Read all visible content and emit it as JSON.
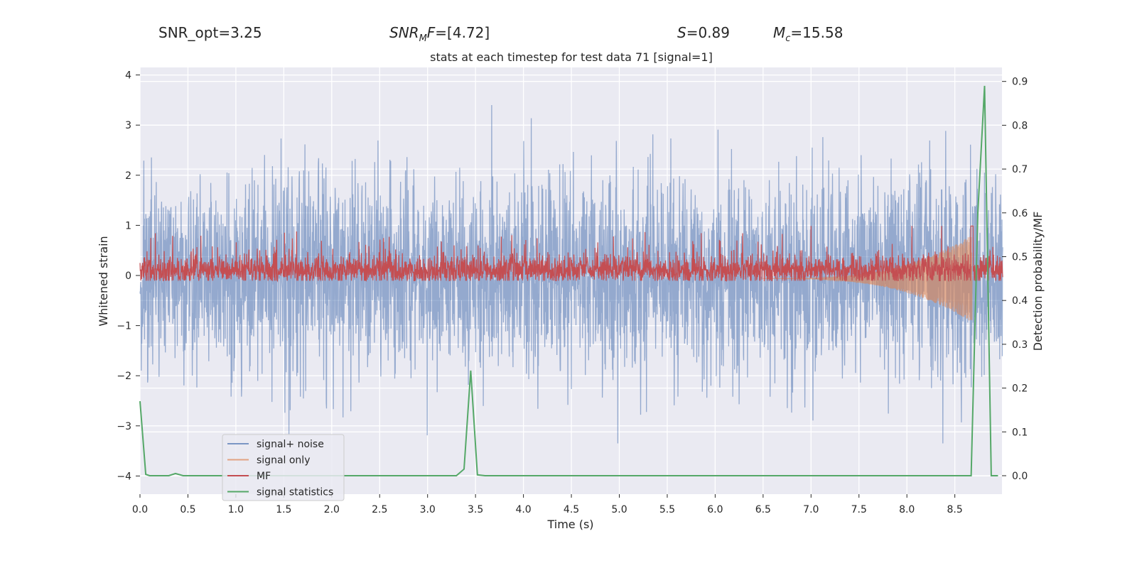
{
  "header": {
    "snr_opt": "SNR_opt=3.25",
    "snr_mf_main": "SNR",
    "snr_mf_sub": "M",
    "snr_mf_tail": "F",
    "snr_mf_value": "=[4.72]",
    "s_sym": "S",
    "s_value": "=0.89",
    "mc_sym": "M",
    "mc_sub": "c",
    "mc_value": "=15.58"
  },
  "chart_data": {
    "type": "line",
    "title": "stats at each timestep for test data 71 [signal=1]",
    "xlabel": "Time (s)",
    "ylabel": "Whitened strain",
    "y2label": "Detection probability/MF",
    "xlim": [
      0.0,
      9.0
    ],
    "ylim": [
      -4.4,
      4.15
    ],
    "y2lim": [
      -0.042,
      0.925
    ],
    "xticks": [
      0.0,
      0.5,
      1.0,
      1.5,
      2.0,
      2.5,
      3.0,
      3.5,
      4.0,
      4.5,
      5.0,
      5.5,
      6.0,
      6.5,
      7.0,
      7.5,
      8.0,
      8.5
    ],
    "xtick_labels": [
      "0.0",
      "0.5",
      "1.0",
      "1.5",
      "2.0",
      "2.5",
      "3.0",
      "3.5",
      "4.0",
      "4.5",
      "5.0",
      "5.5",
      "6.0",
      "6.5",
      "7.0",
      "7.5",
      "8.0",
      "8.5"
    ],
    "yticks": [
      4,
      3,
      2,
      1,
      0,
      -1,
      -2,
      -3,
      -4
    ],
    "ytick_labels": [
      "4",
      "3",
      "2",
      "1",
      "0",
      "−1",
      "−2",
      "−3",
      "−4"
    ],
    "y2ticks": [
      0.9,
      0.8,
      0.7,
      0.6,
      0.5,
      0.4,
      0.3,
      0.2,
      0.1,
      0.0
    ],
    "y2tick_labels": [
      "0.9",
      "0.8",
      "0.7",
      "0.6",
      "0.5",
      "0.4",
      "0.3",
      "0.2",
      "0.1",
      "0.0"
    ],
    "grid": true,
    "legend_position": "lower-left",
    "series": [
      {
        "name": "signal+ noise",
        "color": "#4c72b0",
        "axis": "left",
        "description_values": {
          "x_start": 0.0,
          "x_end": 9.0,
          "y_min": -3.4,
          "y_max": 3.8,
          "typical_std": 1.0
        }
      },
      {
        "name": "signal only",
        "color": "#dd8452",
        "axis": "right",
        "description_values": {
          "x_start": 6.5,
          "x_end": 8.68,
          "chirp_peak_amplitude": 0.1,
          "center": 0.45
        }
      },
      {
        "name": "MF",
        "color": "#c44e52",
        "axis": "right",
        "description_values": {
          "x_start": 0.0,
          "x_end": 9.0,
          "center": 0.47,
          "y_min": 0.445,
          "y_max": 0.57
        }
      },
      {
        "name": "signal statistics",
        "color": "#55a868",
        "axis": "right",
        "x": [
          0.0,
          0.06,
          0.1,
          0.3,
          0.37,
          0.45,
          0.5,
          3.3,
          3.38,
          3.45,
          3.52,
          3.6,
          8.67,
          8.74,
          8.81,
          8.88,
          8.95
        ],
        "y": [
          0.17,
          0.003,
          0.0,
          0.0,
          0.005,
          0.0,
          0.0,
          0.0,
          0.015,
          0.24,
          0.002,
          0.0,
          0.0,
          0.6,
          0.89,
          0.0,
          0.0
        ]
      }
    ]
  }
}
